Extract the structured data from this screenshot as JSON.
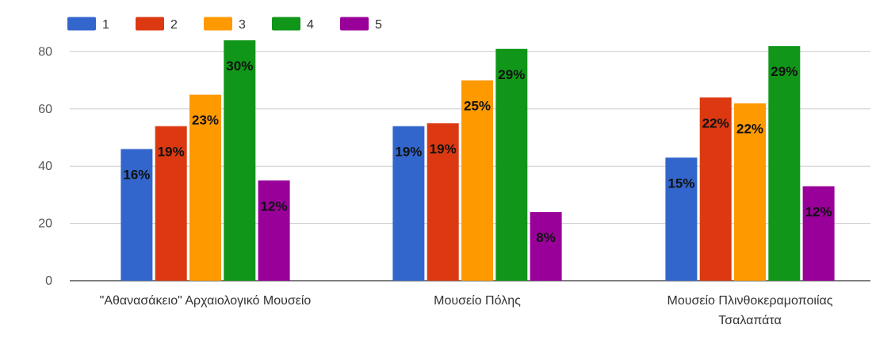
{
  "chart_data": {
    "type": "bar",
    "categories": [
      [
        "\"Αθανασάκειο\" Αρχαιολογικό Μουσείο"
      ],
      [
        "Μουσείο Πόλης"
      ],
      [
        "Μουσείο Πλινθοκεραμοποιίας",
        "Τσαλαπάτα"
      ]
    ],
    "series": [
      {
        "name": "1",
        "color": "#3366cc",
        "values": [
          46,
          54,
          43
        ],
        "labels": [
          "16%",
          "19%",
          "15%"
        ]
      },
      {
        "name": "2",
        "color": "#dc3912",
        "values": [
          54,
          55,
          64
        ],
        "labels": [
          "19%",
          "19%",
          "22%"
        ]
      },
      {
        "name": "3",
        "color": "#ff9900",
        "values": [
          65,
          70,
          62
        ],
        "labels": [
          "23%",
          "25%",
          "22%"
        ]
      },
      {
        "name": "4",
        "color": "#109618",
        "values": [
          84,
          81,
          82
        ],
        "labels": [
          "30%",
          "29%",
          "29%"
        ]
      },
      {
        "name": "5",
        "color": "#990099",
        "values": [
          35,
          24,
          33
        ],
        "labels": [
          "12%",
          "8%",
          "12%"
        ]
      }
    ],
    "yticks": [
      0,
      20,
      40,
      60,
      80
    ],
    "ylim": [
      0,
      88
    ],
    "grid": true,
    "legend_position": "top-left"
  }
}
